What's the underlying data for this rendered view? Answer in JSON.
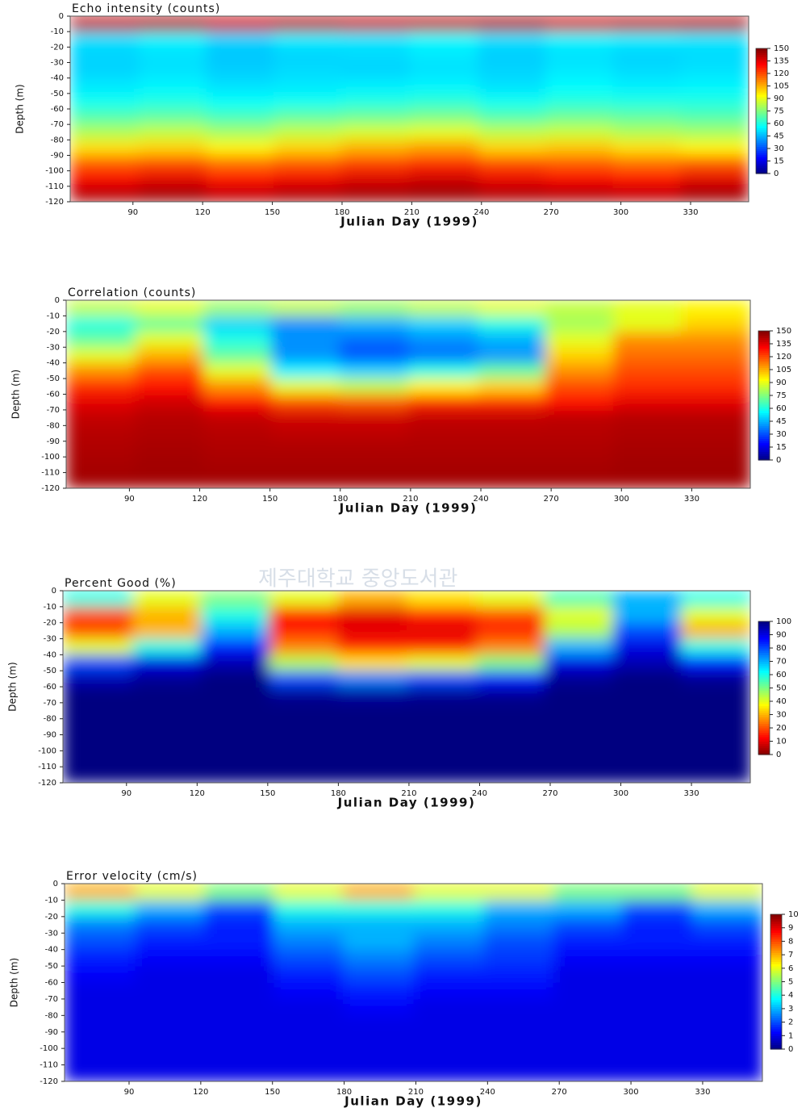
{
  "watermark": "제주대학교 중앙도서관",
  "chart_data": [
    {
      "type": "heatmap",
      "title": "Echo intensity (counts)",
      "x_label": "Julian Day (1999)",
      "y_label": "Depth (m)",
      "colormap": "jet",
      "xlim": [
        63,
        355
      ],
      "xticks": [
        90,
        120,
        150,
        180,
        210,
        240,
        270,
        300,
        330
      ],
      "ylim": [
        -120,
        0
      ],
      "yticks": [
        0,
        -10,
        -20,
        -30,
        -40,
        -50,
        -60,
        -70,
        -80,
        -90,
        -100,
        -110,
        -120
      ],
      "zlim": [
        0,
        150
      ],
      "zticks": [
        0,
        15,
        30,
        45,
        60,
        75,
        90,
        105,
        120,
        135,
        150
      ],
      "x": [
        78,
        107,
        136,
        165,
        194,
        224,
        253,
        282,
        311,
        340
      ],
      "y": [
        -5,
        -15,
        -25,
        -35,
        -45,
        -55,
        -65,
        -75,
        -85,
        -95,
        -105,
        -115
      ],
      "z": [
        [
          140,
          142,
          138,
          141,
          139,
          140,
          142,
          138,
          140,
          141
        ],
        [
          52,
          55,
          50,
          54,
          53,
          56,
          52,
          55,
          54,
          53
        ],
        [
          50,
          52,
          48,
          50,
          51,
          53,
          49,
          52,
          50,
          51
        ],
        [
          50,
          52,
          49,
          51,
          50,
          52,
          50,
          53,
          51,
          52
        ],
        [
          53,
          55,
          52,
          53,
          54,
          55,
          52,
          56,
          54,
          55
        ],
        [
          58,
          60,
          57,
          58,
          60,
          62,
          58,
          61,
          60,
          60
        ],
        [
          68,
          70,
          66,
          70,
          72,
          74,
          68,
          72,
          70,
          68
        ],
        [
          82,
          85,
          80,
          85,
          88,
          90,
          84,
          86,
          82,
          80
        ],
        [
          98,
          100,
          95,
          100,
          105,
          108,
          100,
          102,
          98,
          95
        ],
        [
          118,
          120,
          115,
          118,
          122,
          125,
          120,
          118,
          115,
          118
        ],
        [
          132,
          135,
          130,
          133,
          136,
          138,
          134,
          132,
          130,
          135
        ],
        [
          142,
          145,
          140,
          143,
          145,
          146,
          143,
          142,
          140,
          145
        ]
      ]
    },
    {
      "type": "heatmap",
      "title": "Correlation (counts)",
      "x_label": "Julian Day (1999)",
      "y_label": "Depth (m)",
      "colormap": "jet",
      "xlim": [
        63,
        355
      ],
      "xticks": [
        90,
        120,
        150,
        180,
        210,
        240,
        270,
        300,
        330
      ],
      "ylim": [
        -120,
        0
      ],
      "yticks": [
        0,
        -10,
        -20,
        -30,
        -40,
        -50,
        -60,
        -70,
        -80,
        -90,
        -100,
        -110,
        -120
      ],
      "zlim": [
        0,
        150
      ],
      "zticks": [
        0,
        15,
        30,
        45,
        60,
        75,
        90,
        105,
        120,
        135,
        150
      ],
      "x": [
        78,
        107,
        136,
        165,
        194,
        224,
        253,
        282,
        311,
        340
      ],
      "y": [
        -5,
        -15,
        -25,
        -35,
        -45,
        -55,
        -65,
        -75,
        -85,
        -95,
        -105,
        -115
      ],
      "z": [
        [
          85,
          90,
          80,
          85,
          80,
          85,
          90,
          85,
          90,
          95
        ],
        [
          60,
          70,
          50,
          40,
          45,
          50,
          60,
          80,
          90,
          100
        ],
        [
          70,
          90,
          60,
          40,
          35,
          40,
          45,
          90,
          110,
          110
        ],
        [
          90,
          105,
          70,
          40,
          30,
          35,
          40,
          100,
          115,
          115
        ],
        [
          110,
          120,
          90,
          55,
          50,
          60,
          70,
          110,
          120,
          120
        ],
        [
          125,
          130,
          110,
          90,
          85,
          95,
          100,
          120,
          125,
          125
        ],
        [
          135,
          138,
          130,
          120,
          118,
          125,
          125,
          130,
          135,
          135
        ],
        [
          140,
          142,
          140,
          138,
          138,
          140,
          140,
          141,
          142,
          142
        ],
        [
          142,
          143,
          142,
          141,
          141,
          142,
          142,
          142,
          143,
          143
        ],
        [
          143,
          144,
          143,
          143,
          143,
          143,
          143,
          143,
          144,
          144
        ],
        [
          144,
          145,
          144,
          144,
          144,
          144,
          144,
          144,
          145,
          145
        ],
        [
          145,
          145,
          145,
          145,
          145,
          145,
          145,
          145,
          145,
          145
        ]
      ]
    },
    {
      "type": "heatmap",
      "title": "Percent Good (%)",
      "x_label": "Julian Day (1999)",
      "y_label": "Depth (m)",
      "colormap": "jet_r",
      "xlim": [
        63,
        355
      ],
      "xticks": [
        90,
        120,
        150,
        180,
        210,
        240,
        270,
        300,
        330
      ],
      "ylim": [
        -120,
        0
      ],
      "yticks": [
        0,
        -10,
        -20,
        -30,
        -40,
        -50,
        -60,
        -70,
        -80,
        -90,
        -100,
        -110,
        -120
      ],
      "zlim": [
        0,
        100
      ],
      "zticks": [
        0,
        10,
        20,
        30,
        40,
        50,
        60,
        70,
        80,
        90,
        100
      ],
      "x": [
        78,
        107,
        136,
        165,
        194,
        224,
        253,
        282,
        311,
        340
      ],
      "y": [
        -5,
        -15,
        -25,
        -35,
        -45,
        -55,
        -65,
        -75,
        -85,
        -95,
        -105,
        -115
      ],
      "z": [
        [
          60,
          40,
          50,
          40,
          30,
          35,
          40,
          55,
          70,
          60
        ],
        [
          20,
          30,
          60,
          15,
          10,
          15,
          20,
          40,
          70,
          40
        ],
        [
          20,
          30,
          70,
          15,
          10,
          10,
          15,
          45,
          80,
          30
        ],
        [
          40,
          60,
          85,
          25,
          15,
          15,
          25,
          70,
          90,
          60
        ],
        [
          80,
          90,
          95,
          45,
          35,
          40,
          50,
          90,
          95,
          85
        ],
        [
          95,
          98,
          100,
          80,
          75,
          80,
          85,
          98,
          100,
          98
        ],
        [
          100,
          100,
          100,
          98,
          97,
          98,
          98,
          100,
          100,
          100
        ],
        [
          100,
          100,
          100,
          100,
          100,
          100,
          100,
          100,
          100,
          100
        ],
        [
          100,
          100,
          100,
          100,
          100,
          100,
          100,
          100,
          100,
          100
        ],
        [
          100,
          100,
          100,
          100,
          100,
          100,
          100,
          100,
          100,
          100
        ],
        [
          100,
          100,
          100,
          100,
          100,
          100,
          100,
          100,
          100,
          100
        ],
        [
          100,
          100,
          100,
          100,
          100,
          100,
          100,
          100,
          100,
          100
        ]
      ]
    },
    {
      "type": "heatmap",
      "title": "Error velocity (cm/s)",
      "x_label": "Julian Day (1999)",
      "y_label": "Depth (m)",
      "colormap": "jet",
      "xlim": [
        63,
        355
      ],
      "xticks": [
        90,
        120,
        150,
        180,
        210,
        240,
        270,
        300,
        330
      ],
      "ylim": [
        -120,
        0
      ],
      "yticks": [
        0,
        -10,
        -20,
        -30,
        -40,
        -50,
        -60,
        -70,
        -80,
        -90,
        -100,
        -110,
        -120
      ],
      "zlim": [
        0,
        10
      ],
      "zticks": [
        0,
        1,
        2,
        3,
        4,
        5,
        6,
        7,
        8,
        9,
        10
      ],
      "x": [
        78,
        107,
        136,
        165,
        194,
        224,
        253,
        282,
        311,
        340
      ],
      "y": [
        -5,
        -15,
        -25,
        -35,
        -45,
        -55,
        -65,
        -75,
        -85,
        -95,
        -105,
        -115
      ],
      "z": [
        [
          7,
          6,
          5,
          6,
          7,
          6,
          6,
          5,
          5,
          6
        ],
        [
          4,
          3,
          2,
          4,
          4,
          4,
          3,
          3,
          2,
          3
        ],
        [
          2.5,
          2,
          1.5,
          3,
          3,
          3,
          2.5,
          2,
          1.5,
          2
        ],
        [
          2,
          1.5,
          1.5,
          2.5,
          3,
          2.5,
          2,
          1.5,
          1.5,
          1.5
        ],
        [
          1.5,
          1.2,
          1.2,
          2,
          2.5,
          2,
          1.8,
          1.2,
          1.2,
          1.2
        ],
        [
          1.2,
          1,
          1,
          1.5,
          2,
          1.5,
          1.5,
          1,
          1,
          1
        ],
        [
          1,
          1,
          1,
          1.2,
          1.5,
          1.2,
          1.2,
          1,
          1,
          1
        ],
        [
          1,
          1,
          1,
          1,
          1.2,
          1,
          1,
          1,
          1,
          1
        ],
        [
          1,
          1,
          1,
          1,
          1,
          1,
          1,
          1,
          1,
          1
        ],
        [
          1,
          1,
          1,
          1,
          1,
          1,
          1,
          1,
          1,
          1
        ],
        [
          1,
          1,
          1,
          1,
          1,
          1,
          1,
          1,
          1,
          1
        ],
        [
          1,
          1,
          1,
          1,
          1,
          1,
          1,
          1,
          1,
          1
        ]
      ]
    }
  ]
}
